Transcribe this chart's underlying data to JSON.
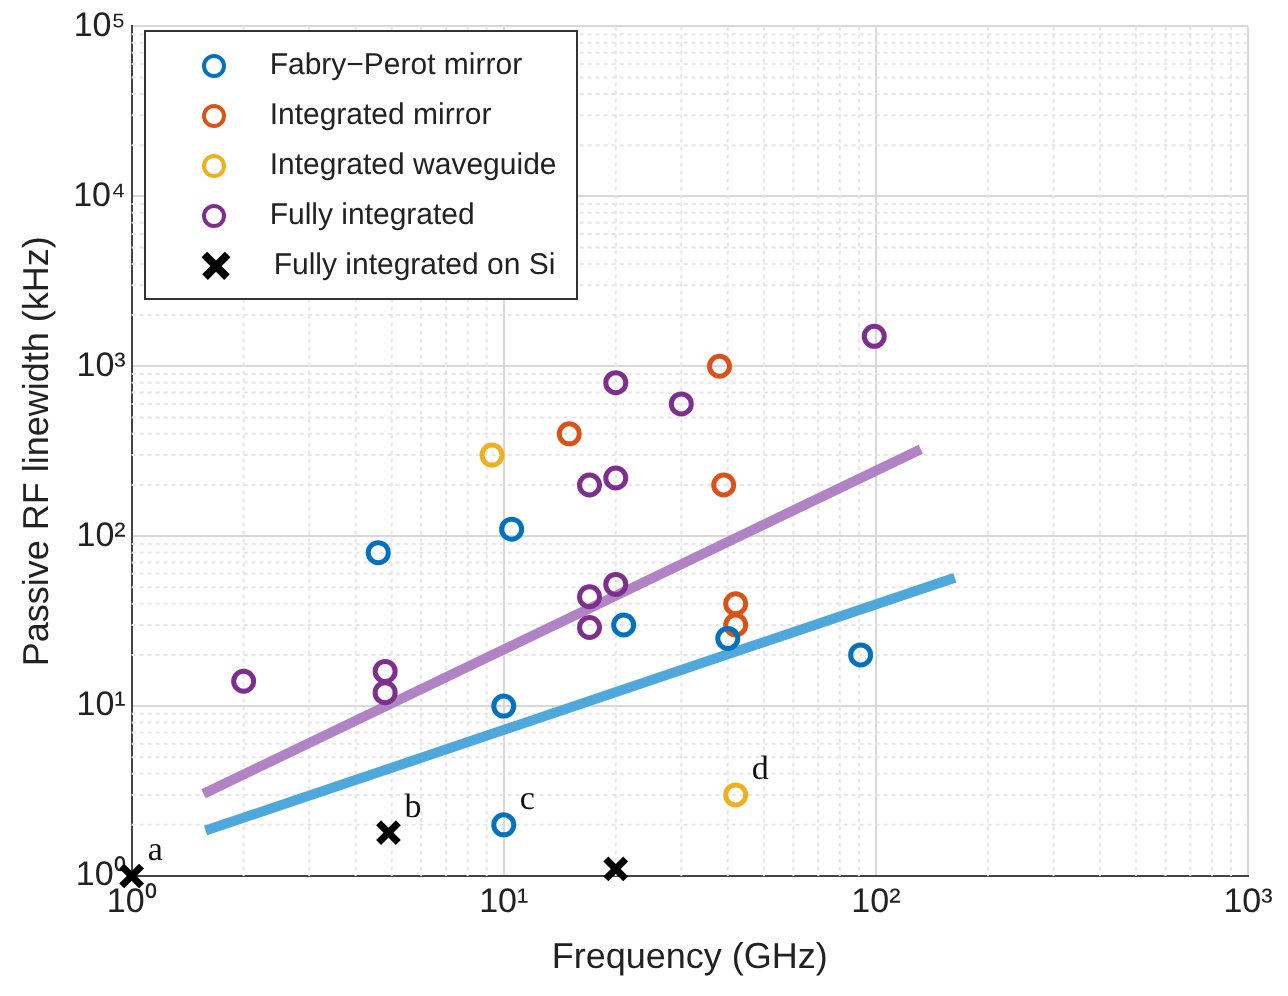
{
  "chart_data": {
    "type": "scatter",
    "xlabel": "Frequency (GHz)",
    "ylabel": "Passive RF linewidth (kHz)",
    "log": "xy",
    "grid": true,
    "legend": "top left",
    "xlim": [
      1,
      1000
    ],
    "xticks": [
      {
        "value": 1,
        "label": "10⁰"
      },
      {
        "value": 10,
        "label": "10¹"
      },
      {
        "value": 100,
        "label": "10²"
      },
      {
        "value": 1000,
        "label": "10³"
      }
    ],
    "ylim": [
      1,
      100000
    ],
    "yticks": [
      {
        "value": 1,
        "label": "10⁰"
      },
      {
        "value": 10,
        "label": "10¹"
      },
      {
        "value": 100,
        "label": "10²"
      },
      {
        "value": 1000,
        "label": "10³"
      },
      {
        "value": 10000,
        "label": "10⁴"
      },
      {
        "value": 100000,
        "label": "10⁵"
      }
    ],
    "series": [
      {
        "name": "Fabry−Perot mirror",
        "color": "#0072bd",
        "marker": "circle",
        "x": [
          4.6,
          10.5,
          10,
          10,
          21,
          40,
          91
        ],
        "values": [
          80,
          110,
          10,
          2,
          30,
          25,
          20
        ]
      },
      {
        "name": "Integrated mirror",
        "color": "#d95319",
        "marker": "circle",
        "x": [
          15,
          38,
          39,
          42,
          42
        ],
        "values": [
          400,
          1000,
          200,
          40,
          30
        ]
      },
      {
        "name": "Integrated waveguide",
        "color": "#edb120",
        "marker": "circle",
        "x": [
          9.3,
          42
        ],
        "values": [
          300,
          3
        ]
      },
      {
        "name": "Fully integrated",
        "color": "#7e2f8e",
        "marker": "circle",
        "x": [
          2,
          4.8,
          4.8,
          17,
          20,
          20,
          30,
          17,
          20,
          17,
          99
        ],
        "values": [
          14,
          16,
          12,
          200,
          220,
          800,
          600,
          44,
          52,
          29,
          1500
        ]
      },
      {
        "name": "Fully integrated on Si",
        "color": "#000000",
        "marker": "cross",
        "x": [
          1,
          4.9,
          20
        ],
        "values": [
          1,
          1.8,
          1.1
        ]
      },
      {
        "type": "line",
        "color": "#b283c4",
        "marker": "none",
        "x": [
          1.56,
          132
        ],
        "values": [
          3.05,
          325
        ]
      },
      {
        "type": "line",
        "color": "#4fa8dc",
        "marker": "none",
        "x": [
          1.58,
          163
        ],
        "values": [
          1.85,
          57
        ]
      }
    ],
    "annotations": [
      {
        "text": "a",
        "x": 1,
        "y": 1
      },
      {
        "text": "b",
        "x": 4.9,
        "y": 1.8
      },
      {
        "text": "c",
        "x": 10,
        "y": 2
      },
      {
        "text": "d",
        "x": 42,
        "y": 3
      }
    ]
  }
}
